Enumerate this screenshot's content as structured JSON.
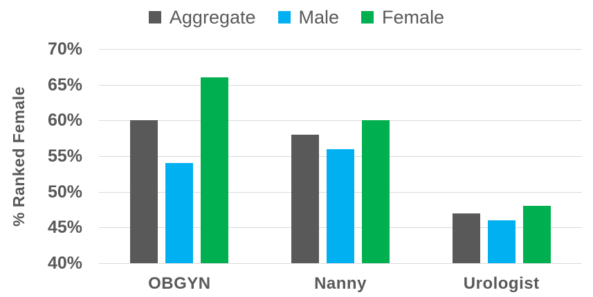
{
  "chart_data": {
    "type": "bar",
    "title": "",
    "xlabel": "",
    "ylabel": "% Ranked Female",
    "categories": [
      "OBGYN",
      "Nanny",
      "Urologist"
    ],
    "series": [
      {
        "name": "Aggregate",
        "color": "#595959",
        "values": [
          60,
          58,
          47
        ]
      },
      {
        "name": "Male",
        "color": "#00B0F0",
        "values": [
          54,
          56,
          46
        ]
      },
      {
        "name": "Female",
        "color": "#00B050",
        "values": [
          66,
          60,
          48
        ]
      }
    ],
    "y_axis": {
      "min": 40,
      "max": 70,
      "step": 5,
      "ticks": [
        "70%",
        "65%",
        "60%",
        "55%",
        "50%",
        "45%",
        "40%"
      ]
    },
    "grid": "horizontal",
    "legend_position": "top",
    "colors": {
      "text": "#595959",
      "gridline": "#D9D9D9",
      "background": "#FFFFFF"
    }
  }
}
